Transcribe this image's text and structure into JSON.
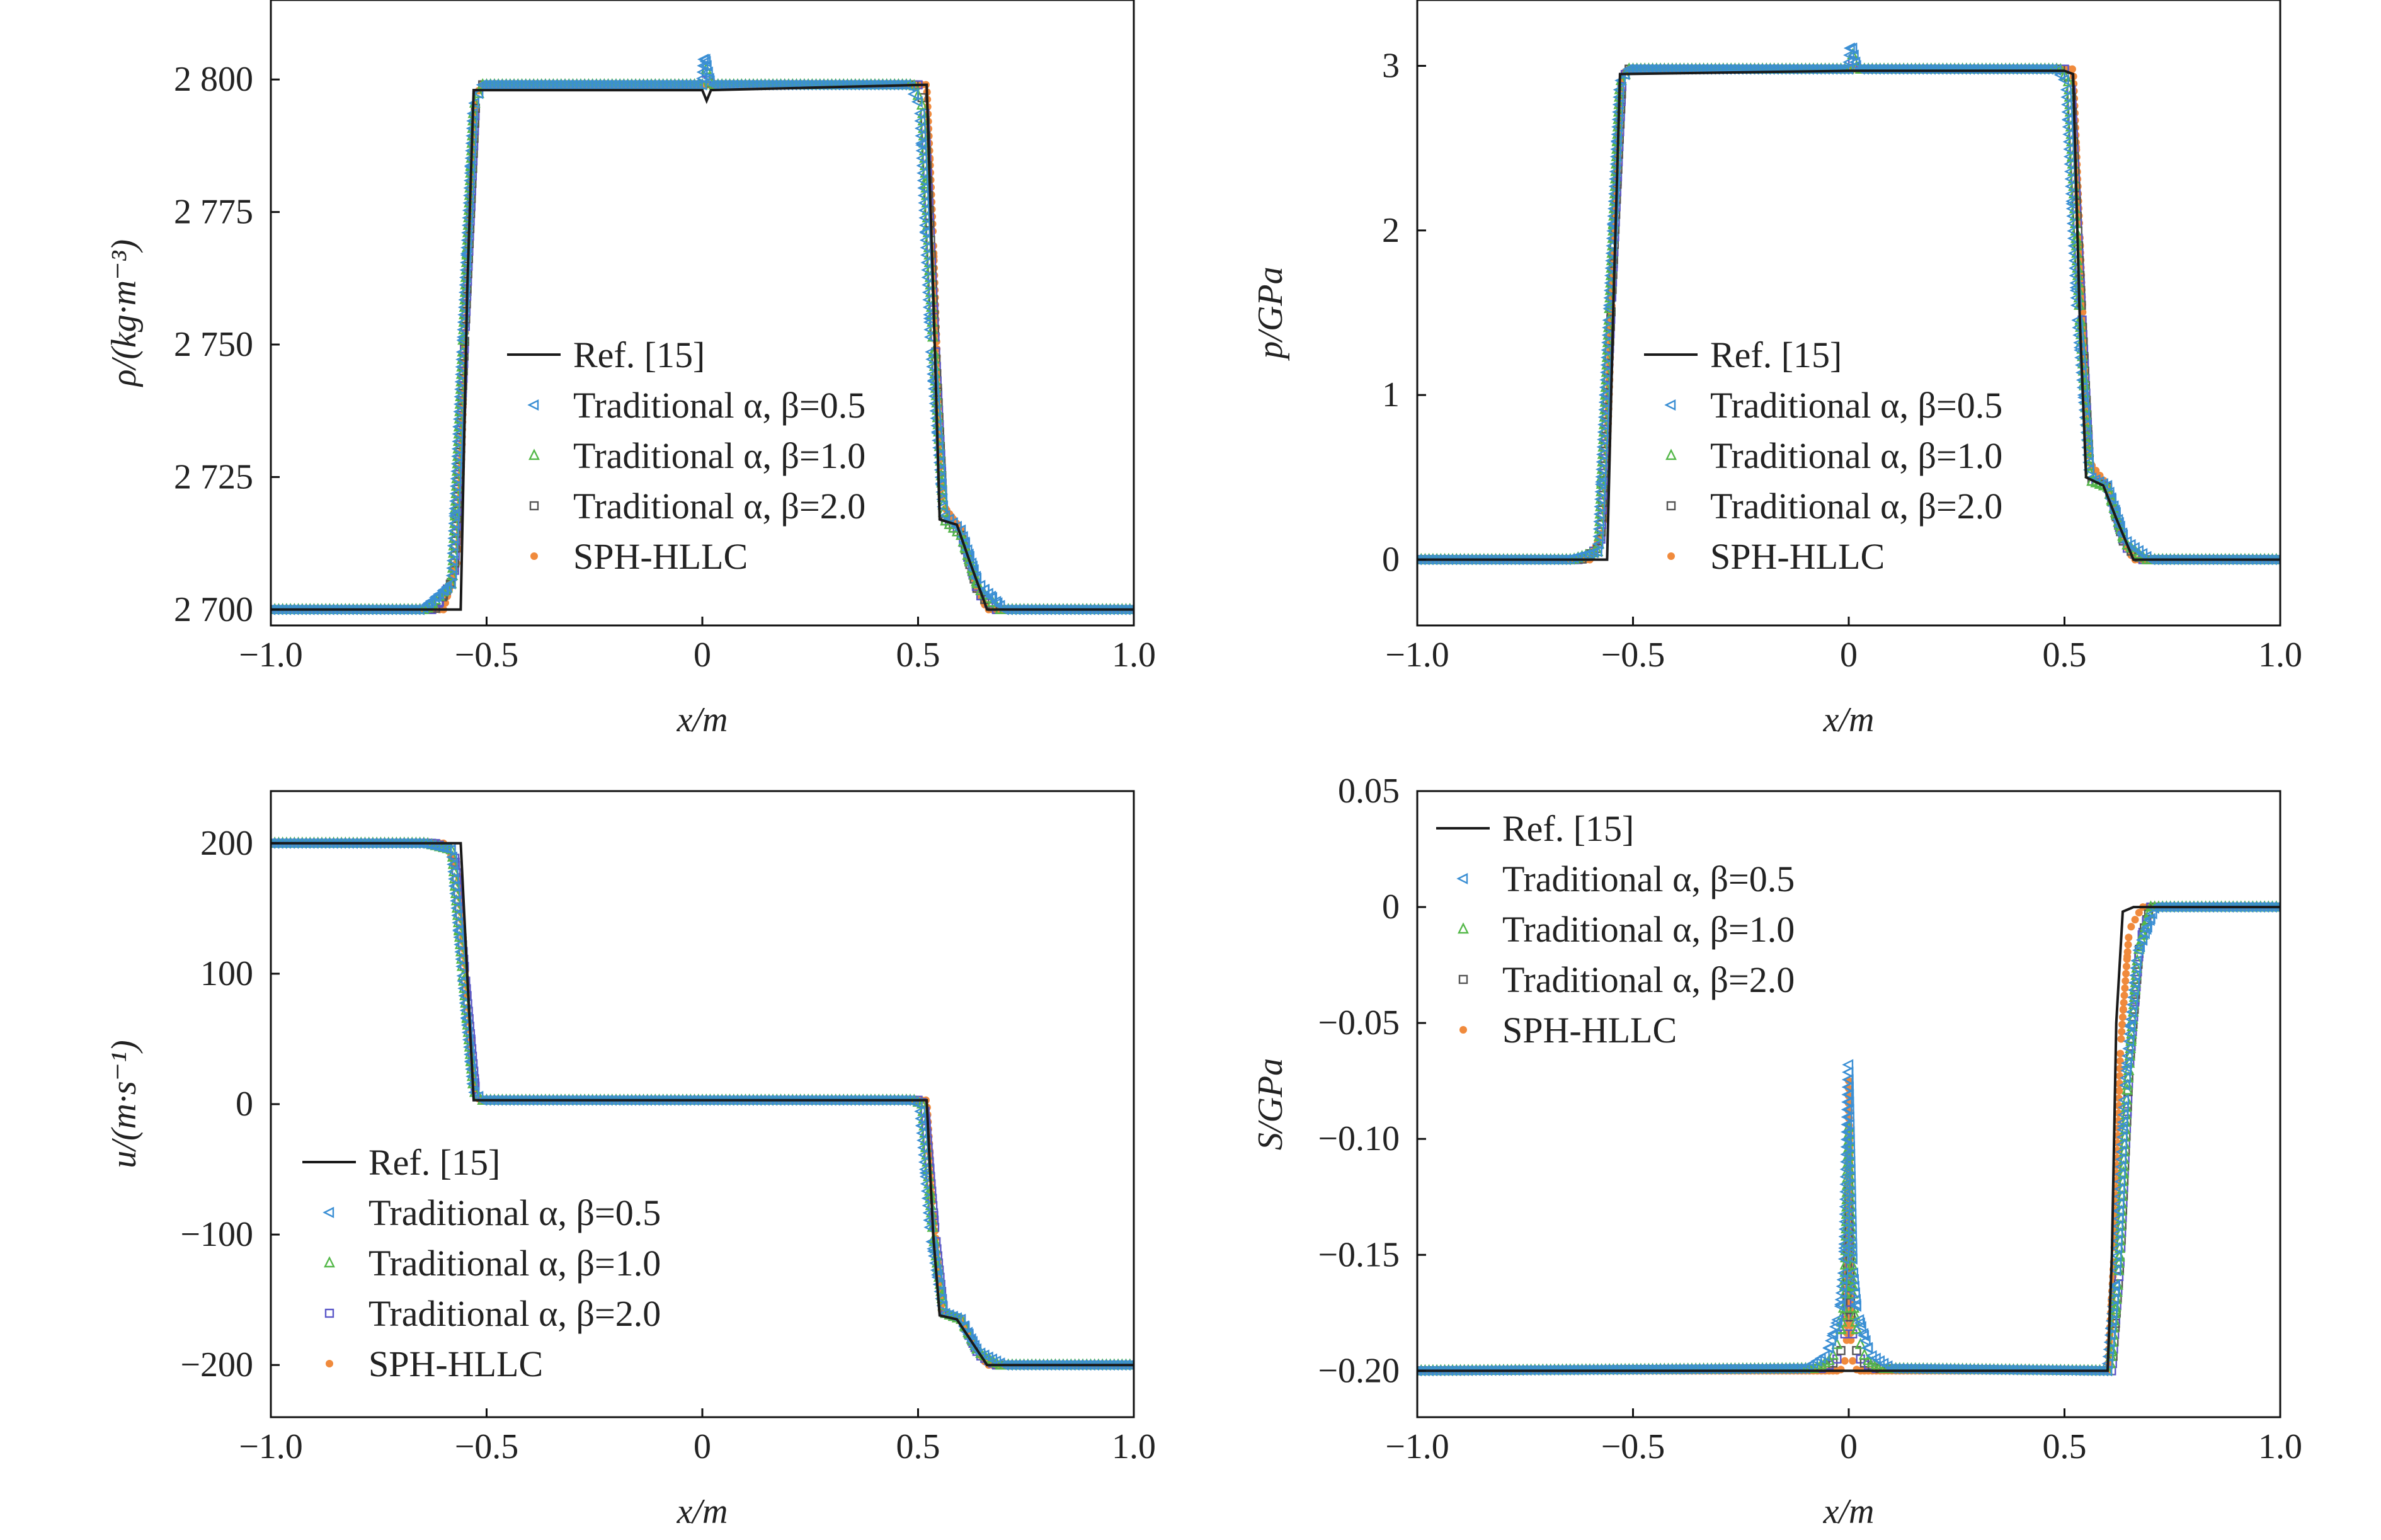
{
  "figure": {
    "legend_labels": [
      "Ref. [15]",
      "Traditional α, β=0.5",
      "Traditional α, β=1.0",
      "Traditional α, β=2.0",
      "SPH-HLLC"
    ]
  },
  "colors": {
    "ref": "#1a1a1a",
    "beta05": "#3b8fd4",
    "beta10": "#54b849",
    "beta20_gray": "#555555",
    "beta20_purple": "#5a57c8",
    "hllc": "#f08a3c"
  },
  "chart_data": [
    {
      "id": "density",
      "type": "line",
      "ylabel": "ρ/(kg·m⁻³)",
      "xlabel": "x/m",
      "xlim": [
        -1.0,
        1.0
      ],
      "ylim": [
        2697,
        2815
      ],
      "xticks": [
        -1.0,
        -0.5,
        0,
        0.5,
        1.0
      ],
      "xtick_labels": [
        "−1.0",
        "−0.5",
        "0",
        "0.5",
        "1.0"
      ],
      "yticks": [
        2700,
        2725,
        2750,
        2775,
        2800
      ],
      "ytick_labels": [
        "2 700",
        "2 725",
        "2 750",
        "2 775",
        "2 800"
      ],
      "legend_position": "center-left",
      "series": [
        {
          "name": "Ref. [15]",
          "marker": "line",
          "x": [
            -1.0,
            -0.56,
            -0.545,
            -0.53,
            0.0,
            0.01,
            0.02,
            0.52,
            0.535,
            0.55,
            0.59,
            0.62,
            0.66,
            1.0
          ],
          "y": [
            2700,
            2700,
            2760,
            2798,
            2798,
            2796,
            2798,
            2799,
            2760,
            2717,
            2716,
            2709,
            2700,
            2700
          ]
        },
        {
          "name": "Traditional α, β=0.5",
          "marker": "triangle-left",
          "x": [
            -1.0,
            -0.65,
            -0.58,
            -0.555,
            -0.53,
            -0.51,
            0.0,
            0.005,
            0.02,
            0.48,
            0.505,
            0.53,
            0.56,
            0.6,
            0.64,
            0.7,
            1.0
          ],
          "y": [
            2700,
            2700,
            2705,
            2750,
            2795,
            2799,
            2799,
            2805,
            2799,
            2799,
            2795,
            2750,
            2718,
            2715,
            2705,
            2700,
            2700
          ]
        },
        {
          "name": "Traditional α, β=1.0",
          "marker": "triangle-up",
          "x": [
            -1.0,
            -0.64,
            -0.58,
            -0.555,
            -0.53,
            -0.51,
            0.0,
            0.005,
            0.02,
            0.49,
            0.51,
            0.535,
            0.56,
            0.6,
            0.64,
            0.69,
            1.0
          ],
          "y": [
            2700,
            2700,
            2705,
            2750,
            2795,
            2799,
            2799,
            2803,
            2799,
            2799,
            2795,
            2750,
            2717,
            2714,
            2704,
            2700,
            2700
          ]
        },
        {
          "name": "Traditional α, β=2.0",
          "marker": "square",
          "x": [
            -1.0,
            -0.62,
            -0.575,
            -0.55,
            -0.525,
            -0.51,
            0.0,
            0.005,
            0.02,
            0.5,
            0.515,
            0.54,
            0.56,
            0.6,
            0.64,
            0.68,
            1.0
          ],
          "y": [
            2700,
            2700,
            2706,
            2752,
            2796,
            2799,
            2799,
            2802,
            2799,
            2799,
            2795,
            2750,
            2717,
            2714,
            2703,
            2700,
            2700
          ]
        },
        {
          "name": "SPH-HLLC",
          "marker": "circle",
          "x": [
            -1.0,
            -0.6,
            -0.565,
            -0.545,
            -0.525,
            -0.51,
            0.0,
            0.52,
            0.535,
            0.555,
            0.6,
            0.63,
            0.66,
            1.0
          ],
          "y": [
            2700,
            2700,
            2710,
            2765,
            2797,
            2799,
            2799,
            2799,
            2770,
            2720,
            2715,
            2705,
            2700,
            2700
          ]
        }
      ]
    },
    {
      "id": "pressure",
      "type": "line",
      "ylabel": "p/GPa",
      "xlabel": "x/m",
      "xlim": [
        -1.0,
        1.0
      ],
      "ylim": [
        -0.4,
        3.4
      ],
      "xticks": [
        -1.0,
        -0.5,
        0,
        0.5,
        1.0
      ],
      "xtick_labels": [
        "−1.0",
        "−0.5",
        "0",
        "0.5",
        "1.0"
      ],
      "yticks": [
        0,
        1,
        2,
        3
      ],
      "ytick_labels": [
        "0",
        "1",
        "2",
        "3"
      ],
      "legend_position": "center",
      "series": [
        {
          "name": "Ref. [15]",
          "marker": "line",
          "x": [
            -1.0,
            -0.56,
            -0.545,
            -0.53,
            0.0,
            0.5,
            0.52,
            0.535,
            0.55,
            0.59,
            0.62,
            0.66,
            1.0
          ],
          "y": [
            0,
            0,
            1.6,
            2.95,
            2.97,
            2.97,
            2.95,
            1.5,
            0.5,
            0.45,
            0.25,
            0,
            0
          ]
        },
        {
          "name": "Traditional α, β=0.5",
          "marker": "triangle-left",
          "x": [
            -1.0,
            -0.65,
            -0.58,
            -0.555,
            -0.53,
            -0.51,
            0.0,
            0.005,
            0.02,
            0.48,
            0.505,
            0.53,
            0.56,
            0.6,
            0.64,
            0.7,
            1.0
          ],
          "y": [
            0,
            0,
            0.05,
            1.5,
            2.9,
            2.98,
            2.98,
            3.15,
            2.98,
            2.98,
            2.9,
            1.5,
            0.5,
            0.45,
            0.12,
            0,
            0
          ]
        },
        {
          "name": "Traditional α, β=1.0",
          "marker": "triangle-up",
          "x": [
            -1.0,
            -0.64,
            -0.58,
            -0.555,
            -0.53,
            -0.51,
            0.0,
            0.005,
            0.02,
            0.49,
            0.51,
            0.535,
            0.56,
            0.6,
            0.64,
            0.69,
            1.0
          ],
          "y": [
            0,
            0,
            0.05,
            1.5,
            2.9,
            2.98,
            2.98,
            3.1,
            2.98,
            2.98,
            2.9,
            1.5,
            0.48,
            0.44,
            0.1,
            0,
            0
          ]
        },
        {
          "name": "Traditional α, β=2.0",
          "marker": "square",
          "x": [
            -1.0,
            -0.62,
            -0.575,
            -0.55,
            -0.525,
            -0.51,
            0.0,
            0.005,
            0.02,
            0.5,
            0.515,
            0.54,
            0.56,
            0.6,
            0.64,
            0.68,
            1.0
          ],
          "y": [
            0,
            0,
            0.08,
            1.55,
            2.92,
            2.98,
            2.98,
            3.05,
            2.98,
            2.98,
            2.9,
            1.5,
            0.48,
            0.44,
            0.08,
            0,
            0
          ]
        },
        {
          "name": "SPH-HLLC",
          "marker": "circle",
          "x": [
            -1.0,
            -0.6,
            -0.565,
            -0.545,
            -0.525,
            -0.51,
            0.0,
            0.52,
            0.535,
            0.555,
            0.6,
            0.63,
            0.66,
            1.0
          ],
          "y": [
            0,
            0,
            0.2,
            1.9,
            2.95,
            2.98,
            2.98,
            2.98,
            2.0,
            0.6,
            0.45,
            0.15,
            0,
            0
          ]
        }
      ]
    },
    {
      "id": "velocity",
      "type": "line",
      "ylabel": "u/(m·s⁻¹)",
      "xlabel": "x/m",
      "xlim": [
        -1.0,
        1.0
      ],
      "ylim": [
        -240,
        240
      ],
      "xticks": [
        -1.0,
        -0.5,
        0,
        0.5,
        1.0
      ],
      "xtick_labels": [
        "−1.0",
        "−0.5",
        "0",
        "0.5",
        "1.0"
      ],
      "yticks": [
        -200,
        -100,
        0,
        100,
        200
      ],
      "ytick_labels": [
        "−200",
        "−100",
        "0",
        "100",
        "200"
      ],
      "legend_position": "lower-left",
      "series": [
        {
          "name": "Ref. [15]",
          "marker": "line",
          "x": [
            -1.0,
            -0.56,
            -0.545,
            -0.53,
            0.0,
            0.52,
            0.535,
            0.55,
            0.59,
            0.62,
            0.66,
            1.0
          ],
          "y": [
            200,
            200,
            100,
            3,
            3,
            3,
            -100,
            -162,
            -165,
            -180,
            -200,
            -200
          ]
        },
        {
          "name": "Traditional α, β=0.5",
          "marker": "triangle-left",
          "x": [
            -1.0,
            -0.65,
            -0.58,
            -0.555,
            -0.53,
            -0.51,
            0.48,
            0.505,
            0.53,
            0.56,
            0.6,
            0.64,
            0.7,
            1.0
          ],
          "y": [
            200,
            200,
            195,
            100,
            10,
            3,
            3,
            0,
            -100,
            -160,
            -165,
            -190,
            -200,
            -200
          ]
        },
        {
          "name": "Traditional α, β=1.0",
          "marker": "triangle-up",
          "x": [
            -1.0,
            -0.64,
            -0.58,
            -0.555,
            -0.53,
            -0.51,
            0.49,
            0.51,
            0.535,
            0.56,
            0.6,
            0.64,
            0.69,
            1.0
          ],
          "y": [
            200,
            200,
            195,
            100,
            10,
            3,
            3,
            0,
            -100,
            -160,
            -165,
            -190,
            -200,
            -200
          ]
        },
        {
          "name": "Traditional α, β=2.0",
          "marker": "square",
          "x": [
            -1.0,
            -0.62,
            -0.575,
            -0.55,
            -0.525,
            -0.51,
            0.5,
            0.515,
            0.54,
            0.56,
            0.6,
            0.64,
            0.68,
            1.0
          ],
          "y": [
            200,
            200,
            194,
            100,
            8,
            3,
            3,
            0,
            -100,
            -160,
            -165,
            -192,
            -200,
            -200
          ]
        },
        {
          "name": "SPH-HLLC",
          "marker": "circle",
          "x": [
            -1.0,
            -0.6,
            -0.565,
            -0.545,
            -0.525,
            -0.51,
            0.52,
            0.535,
            0.555,
            0.6,
            0.63,
            0.66,
            1.0
          ],
          "y": [
            200,
            200,
            180,
            80,
            5,
            3,
            3,
            -80,
            -160,
            -165,
            -185,
            -200,
            -200
          ]
        }
      ]
    },
    {
      "id": "stress",
      "type": "line",
      "ylabel": "S/GPa",
      "xlabel": "x/m",
      "xlim": [
        -1.0,
        1.0
      ],
      "ylim": [
        -0.22,
        0.05
      ],
      "xticks": [
        -1.0,
        -0.5,
        0,
        0.5,
        1.0
      ],
      "xtick_labels": [
        "−1.0",
        "−0.5",
        "0",
        "0.5",
        "1.0"
      ],
      "yticks": [
        -0.2,
        -0.15,
        -0.1,
        -0.05,
        0,
        0.05
      ],
      "ytick_labels": [
        "−0.20",
        "−0.15",
        "−0.10",
        "−0.05",
        "0",
        "0.05"
      ],
      "legend_position": "upper-left",
      "series": [
        {
          "name": "Ref. [15]",
          "marker": "line",
          "x": [
            -1.0,
            0.6,
            0.61,
            0.62,
            0.635,
            0.66,
            1.0
          ],
          "y": [
            -0.2,
            -0.2,
            -0.15,
            -0.05,
            -0.002,
            0,
            0
          ]
        },
        {
          "name": "Traditional α, β=0.5",
          "marker": "triangle-left",
          "x": [
            -1.0,
            -0.1,
            -0.05,
            -0.02,
            -0.01,
            0.0,
            0.01,
            0.02,
            0.05,
            0.1,
            0.6,
            0.62,
            0.64,
            0.67,
            0.71,
            1.0
          ],
          "y": [
            -0.2,
            -0.199,
            -0.193,
            -0.175,
            -0.155,
            -0.068,
            -0.155,
            -0.175,
            -0.193,
            -0.199,
            -0.2,
            -0.16,
            -0.08,
            -0.02,
            0,
            0
          ]
        },
        {
          "name": "Traditional α, β=1.0",
          "marker": "triangle-up",
          "x": [
            -1.0,
            -0.08,
            -0.04,
            -0.02,
            -0.01,
            0.0,
            0.01,
            0.02,
            0.04,
            0.08,
            0.605,
            0.625,
            0.645,
            0.67,
            0.7,
            1.0
          ],
          "y": [
            -0.2,
            -0.199,
            -0.195,
            -0.185,
            -0.17,
            -0.095,
            -0.17,
            -0.185,
            -0.195,
            -0.199,
            -0.2,
            -0.16,
            -0.08,
            -0.02,
            0,
            0
          ]
        },
        {
          "name": "Traditional α, β=2.0",
          "marker": "square",
          "x": [
            -1.0,
            -0.06,
            -0.03,
            -0.015,
            -0.005,
            0.0,
            0.005,
            0.015,
            0.03,
            0.06,
            0.61,
            0.63,
            0.65,
            0.675,
            0.7,
            1.0
          ],
          "y": [
            -0.2,
            -0.199,
            -0.196,
            -0.19,
            -0.18,
            -0.12,
            -0.18,
            -0.19,
            -0.196,
            -0.199,
            -0.2,
            -0.15,
            -0.07,
            -0.015,
            0,
            0
          ]
        },
        {
          "name": "SPH-HLLC",
          "marker": "circle",
          "x": [
            -1.0,
            -0.02,
            -0.01,
            -0.005,
            0.0,
            0.005,
            0.01,
            0.02,
            0.6,
            0.615,
            0.63,
            0.65,
            0.68,
            1.0
          ],
          "y": [
            -0.2,
            -0.2,
            -0.197,
            -0.19,
            -0.075,
            -0.19,
            -0.197,
            -0.2,
            -0.2,
            -0.15,
            -0.06,
            -0.01,
            0,
            0
          ]
        }
      ]
    }
  ]
}
